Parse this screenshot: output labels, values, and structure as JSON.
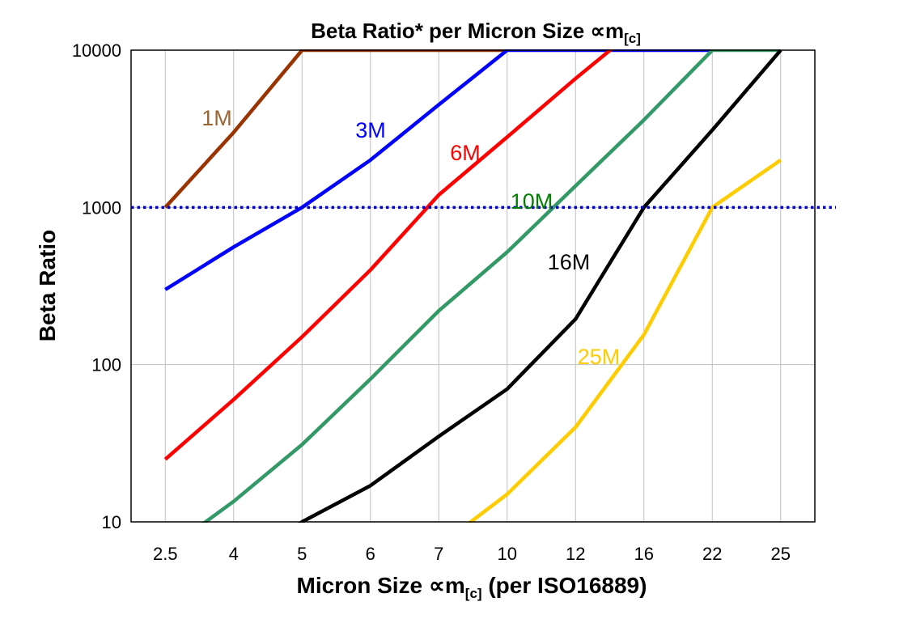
{
  "chart_data": {
    "type": "line",
    "title": "Beta Ratio* per Micron Size ∝m",
    "title_subscript": "[c]",
    "xlabel": "Micron Size ∝m",
    "xlabel_subscript": "[c]",
    "xlabel_suffix": " (per ISO16889)",
    "ylabel": "Beta Ratio",
    "yscale": "log",
    "ylim": [
      10,
      10000
    ],
    "yticks": [
      "10",
      "100",
      "1000",
      "10000"
    ],
    "grid": true,
    "legend": "none (inline labels)",
    "categories": [
      "2.5",
      "4",
      "5",
      "6",
      "7",
      "10",
      "12",
      "16",
      "22",
      "25"
    ],
    "reference_line": {
      "y": 1000,
      "color": "#0000CC",
      "style": "dotted"
    },
    "series": [
      {
        "name": "1M",
        "color": "#993300",
        "label_color": "#996633",
        "values": [
          1000,
          3000,
          10000,
          10000,
          10000,
          10000,
          null,
          null,
          null,
          null
        ]
      },
      {
        "name": "3M",
        "color": "#0000FF",
        "label_color": "#0000FF",
        "values": [
          300,
          560,
          1000,
          2000,
          4500,
          10000,
          10000,
          10000,
          10000,
          null
        ]
      },
      {
        "name": "6M",
        "color": "#FF0000",
        "label_color": "#FF0000",
        "values": [
          25,
          60,
          150,
          400,
          1200,
          2800,
          6600,
          15000,
          null,
          null
        ]
      },
      {
        "name": "10M",
        "color": "#339966",
        "label_color": "#008000",
        "values": [
          6.5,
          13.5,
          31,
          81,
          220,
          520,
          1370,
          3600,
          10000,
          10000
        ]
      },
      {
        "name": "16M",
        "color": "#000000",
        "label_color": "#000000",
        "values": [
          null,
          5,
          10,
          17,
          35,
          70,
          195,
          1000,
          3100,
          10000
        ]
      },
      {
        "name": "25M",
        "color": "#FFCC00",
        "label_color": "#FFCC00",
        "values": [
          null,
          null,
          null,
          null,
          7,
          15,
          40,
          155,
          1000,
          2000
        ]
      }
    ]
  }
}
